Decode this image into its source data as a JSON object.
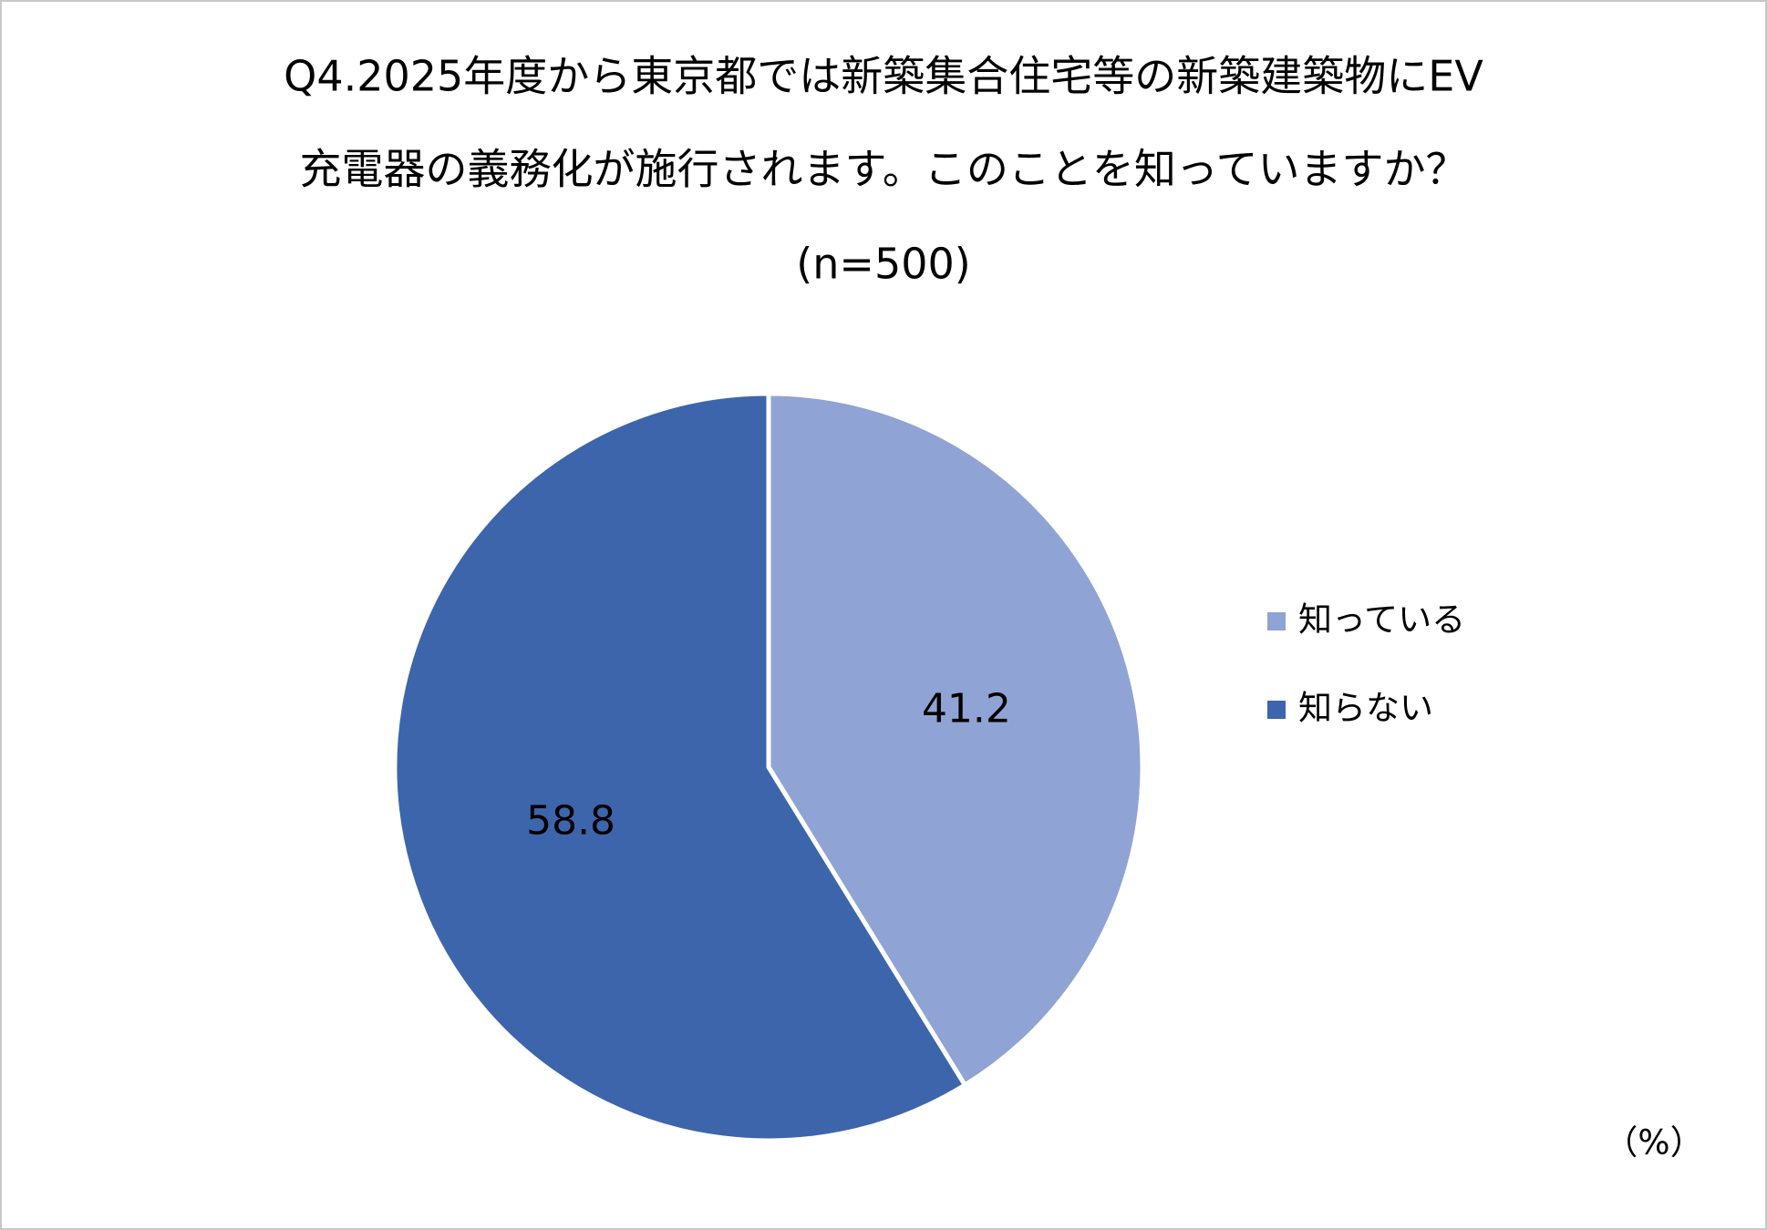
{
  "chart_data": {
    "type": "pie",
    "title_lines": [
      "Q4.2025年度から東京都では新築集合住宅等の新築建築物にEV",
      "充電器の義務化が施行されます。このことを知っていますか？"
    ],
    "subtitle": "(n=500)",
    "categories": [
      "知っている",
      "知らない"
    ],
    "values": [
      41.2,
      58.8
    ],
    "colors": [
      "#8FA4D4",
      "#3D65AC"
    ],
    "unit_label": "（%）",
    "legend": "right"
  }
}
